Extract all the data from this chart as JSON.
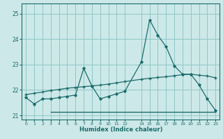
{
  "title": "",
  "xlabel": "Humidex (Indice chaleur)",
  "bg_color": "#cde8e8",
  "grid_color": "#8fc8c8",
  "line_color": "#1a6b6b",
  "xlim": [
    -0.5,
    23.5
  ],
  "ylim": [
    20.85,
    25.4
  ],
  "yticks": [
    21,
    22,
    23,
    24,
    25
  ],
  "xtick_values": [
    0,
    1,
    2,
    3,
    4,
    5,
    6,
    7,
    8,
    9,
    10,
    11,
    12,
    14,
    15,
    16,
    17,
    18,
    19,
    20,
    21,
    22,
    23
  ],
  "line1_x": [
    0,
    1,
    2,
    3,
    4,
    5,
    6,
    7,
    8,
    9,
    10,
    11,
    12,
    14,
    15,
    16,
    17,
    18,
    19,
    20,
    21,
    22,
    23
  ],
  "line1_y": [
    21.7,
    21.45,
    21.65,
    21.65,
    21.7,
    21.75,
    21.8,
    22.85,
    22.15,
    21.65,
    21.75,
    21.85,
    21.95,
    23.1,
    24.75,
    24.15,
    23.7,
    22.95,
    22.62,
    22.62,
    22.2,
    21.65,
    21.2
  ],
  "line2_x": [
    0,
    1,
    2,
    3,
    4,
    5,
    6,
    7,
    8,
    9,
    10,
    11,
    12,
    14,
    15,
    16,
    17,
    18,
    19,
    20,
    21,
    22,
    23
  ],
  "line2_y": [
    21.82,
    21.87,
    21.92,
    21.98,
    22.02,
    22.07,
    22.1,
    22.13,
    22.16,
    22.19,
    22.23,
    22.28,
    22.33,
    22.42,
    22.46,
    22.49,
    22.52,
    22.56,
    22.6,
    22.62,
    22.58,
    22.55,
    22.48
  ],
  "line3_x": [
    3,
    23
  ],
  "line3_y": [
    21.15,
    21.15
  ]
}
